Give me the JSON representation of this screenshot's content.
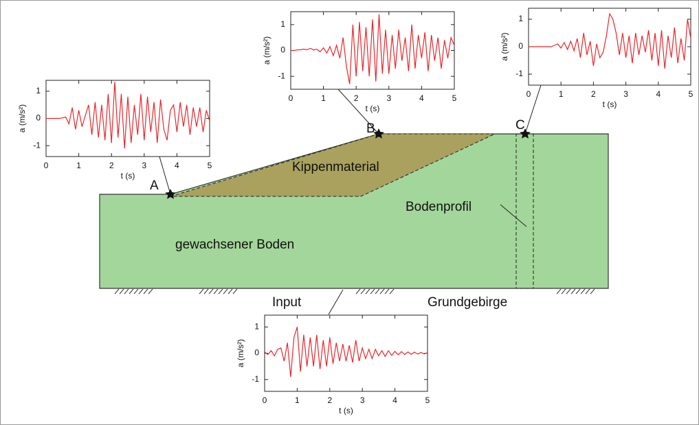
{
  "diagram": {
    "point_a": "A",
    "point_b": "B",
    "point_c": "C",
    "dump_material": "Kippenmaterial",
    "soil_profile": "Bodenprofil",
    "natural_soil": "gewachsener Boden",
    "input": "Input",
    "bedrock": "Grundgebirge"
  },
  "chart_data": [
    {
      "type": "line",
      "xlabel": "t (s)",
      "ylabel": "a (m/s²)",
      "color": "#e8262a",
      "xlim": [
        0,
        5
      ],
      "ylim": [
        -1.4,
        1.4
      ],
      "xticks": [
        0,
        1,
        2,
        3,
        4,
        5
      ],
      "yticks": [
        -1,
        0,
        1
      ],
      "x": [
        0,
        0.1,
        0.2,
        0.3,
        0.4,
        0.5,
        0.6,
        0.7,
        0.8,
        0.9,
        1,
        1.1,
        1.2,
        1.3,
        1.4,
        1.5,
        1.6,
        1.7,
        1.8,
        1.9,
        2,
        2.1,
        2.2,
        2.3,
        2.4,
        2.5,
        2.6,
        2.7,
        2.8,
        2.9,
        3,
        3.1,
        3.2,
        3.3,
        3.4,
        3.5,
        3.6,
        3.7,
        3.8,
        3.9,
        4,
        4.1,
        4.2,
        4.3,
        4.4,
        4.5,
        4.6,
        4.7,
        4.8,
        4.9,
        5
      ],
      "values": [
        0,
        0,
        0,
        0,
        0,
        0.02,
        0.05,
        -0.2,
        0.4,
        -0.4,
        0.3,
        -0.3,
        0.1,
        0.5,
        -0.6,
        0.6,
        -0.7,
        0.5,
        -0.8,
        0.9,
        -0.9,
        1.35,
        -0.7,
        0.9,
        -1.1,
        0.8,
        -0.9,
        0.5,
        -0.6,
        0.9,
        -0.8,
        0.8,
        -0.5,
        0.6,
        -0.9,
        0.7,
        -0.4,
        -0.8,
        0.3,
        0.5,
        -0.5,
        0.6,
        -0.3,
        0.5,
        -0.6,
        0.4,
        -0.3,
        0.4,
        -0.5,
        0.3,
        -0.1
      ]
    },
    {
      "type": "line",
      "xlabel": "t (s)",
      "ylabel": "a (m/s²)",
      "color": "#e8262a",
      "xlim": [
        0,
        5
      ],
      "ylim": [
        -1.5,
        1.5
      ],
      "xticks": [
        0,
        1,
        2,
        3,
        4,
        5
      ],
      "yticks": [
        -1,
        0,
        1
      ],
      "x": [
        0,
        0.1,
        0.2,
        0.3,
        0.4,
        0.5,
        0.6,
        0.7,
        0.8,
        0.9,
        1,
        1.1,
        1.2,
        1.3,
        1.4,
        1.5,
        1.6,
        1.7,
        1.8,
        1.9,
        2,
        2.1,
        2.2,
        2.3,
        2.4,
        2.5,
        2.6,
        2.7,
        2.8,
        2.9,
        3,
        3.1,
        3.2,
        3.3,
        3.4,
        3.5,
        3.6,
        3.7,
        3.8,
        3.9,
        4,
        4.1,
        4.2,
        4.3,
        4.4,
        4.5,
        4.6,
        4.7,
        4.8,
        4.9,
        5
      ],
      "values": [
        0,
        0,
        0.02,
        0.03,
        0.05,
        0.03,
        0.08,
        0.02,
        0.05,
        -0.05,
        0.1,
        -0.1,
        0.15,
        -0.2,
        0.2,
        -0.3,
        0.5,
        -0.6,
        -1.3,
        1.0,
        -1.0,
        1.1,
        -0.8,
        0.9,
        -1.0,
        1.2,
        -1.2,
        1.4,
        -0.9,
        0.8,
        -0.9,
        0.6,
        -0.7,
        0.8,
        -0.4,
        0.5,
        -0.8,
        1.0,
        -0.7,
        0.6,
        -0.3,
        0.7,
        -0.8,
        0.6,
        -0.4,
        0.5,
        -0.7,
        0.4,
        -0.3,
        0.5,
        0.2
      ]
    },
    {
      "type": "line",
      "xlabel": "t (s)",
      "ylabel": "a (m/s²)",
      "color": "#e8262a",
      "xlim": [
        0,
        5
      ],
      "ylim": [
        -1.4,
        1.4
      ],
      "xticks": [
        0,
        1,
        2,
        3,
        4,
        5
      ],
      "yticks": [
        -1,
        0,
        1
      ],
      "x": [
        0,
        0.1,
        0.2,
        0.3,
        0.4,
        0.5,
        0.6,
        0.7,
        0.8,
        0.9,
        1,
        1.1,
        1.2,
        1.3,
        1.4,
        1.5,
        1.6,
        1.7,
        1.8,
        1.9,
        2,
        2.1,
        2.2,
        2.3,
        2.4,
        2.5,
        2.6,
        2.7,
        2.8,
        2.9,
        3,
        3.1,
        3.2,
        3.3,
        3.4,
        3.5,
        3.6,
        3.7,
        3.8,
        3.9,
        4,
        4.1,
        4.2,
        4.3,
        4.4,
        4.5,
        4.6,
        4.7,
        4.8,
        4.9,
        5
      ],
      "values": [
        0,
        0,
        0,
        0,
        0,
        0,
        0,
        0,
        0.05,
        0.1,
        -0.05,
        0.15,
        -0.1,
        0.2,
        -0.15,
        0.3,
        -0.4,
        0.5,
        -0.3,
        0.2,
        -0.7,
        0.1,
        -0.4,
        -0.2,
        0.4,
        1.2,
        1.0,
        0.5,
        -0.3,
        0.5,
        -0.4,
        0.4,
        -0.6,
        0.5,
        -0.3,
        0.4,
        -0.2,
        0.6,
        -0.5,
        0.5,
        -0.7,
        0.6,
        -0.8,
        0.4,
        -0.4,
        0.7,
        -0.6,
        0.3,
        -0.5,
        1.0,
        0.3
      ]
    },
    {
      "type": "line",
      "xlabel": "t (s)",
      "ylabel": "a (m/s²)",
      "color": "#e8262a",
      "xlim": [
        0,
        5
      ],
      "ylim": [
        -1.45,
        1.45
      ],
      "xticks": [
        0,
        1,
        2,
        3,
        4,
        5
      ],
      "yticks": [
        -1,
        0,
        1
      ],
      "x": [
        0,
        0.1,
        0.2,
        0.3,
        0.4,
        0.5,
        0.6,
        0.7,
        0.8,
        0.9,
        1,
        1.1,
        1.2,
        1.3,
        1.4,
        1.5,
        1.6,
        1.7,
        1.8,
        1.9,
        2,
        2.1,
        2.2,
        2.3,
        2.4,
        2.5,
        2.6,
        2.7,
        2.8,
        2.9,
        3,
        3.1,
        3.2,
        3.3,
        3.4,
        3.5,
        3.6,
        3.7,
        3.8,
        3.9,
        4,
        4.1,
        4.2,
        4.3,
        4.4,
        4.5,
        4.6,
        4.7,
        4.8,
        4.9,
        5
      ],
      "values": [
        0.05,
        -0.05,
        0.1,
        -0.1,
        0.15,
        0.2,
        -0.3,
        0.4,
        -0.9,
        0.6,
        1.0,
        -0.7,
        0.7,
        -0.5,
        0.6,
        -0.5,
        0.7,
        -0.6,
        0.5,
        -0.5,
        0.6,
        -0.4,
        0.4,
        -0.3,
        0.35,
        -0.3,
        0.3,
        -0.35,
        0.5,
        -0.3,
        0.2,
        -0.2,
        0.15,
        -0.2,
        0.15,
        -0.1,
        0.1,
        -0.12,
        0.1,
        -0.08,
        0.07,
        -0.06,
        0.06,
        -0.05,
        0.05,
        -0.04,
        0.04,
        -0.03,
        0.03,
        -0.02,
        0.02
      ]
    }
  ]
}
